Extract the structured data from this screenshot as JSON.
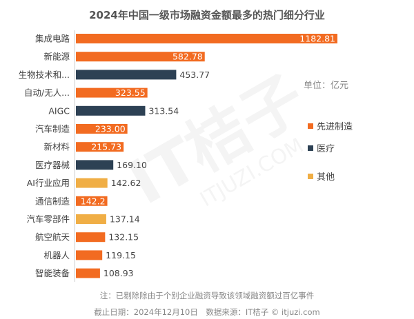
{
  "chart_data": {
    "type": "bar",
    "orientation": "horizontal",
    "title": "2024年中国一级市场融资金额最多的热门细分行业",
    "unit_label": "单位：亿元",
    "categories": [
      "集成电路",
      "新能源",
      "生物技术和...",
      "自动/无人...",
      "AIGC",
      "汽车制造",
      "新材料",
      "医疗器械",
      "AI行业应用",
      "通信制造",
      "汽车零部件",
      "航空航天",
      "机器人",
      "智能装备"
    ],
    "values": [
      1182.81,
      582.78,
      453.77,
      323.55,
      313.54,
      233.0,
      215.73,
      169.1,
      142.62,
      142.2,
      137.14,
      132.15,
      119.15,
      108.93
    ],
    "value_labels": [
      "1182.81",
      "582.78",
      "453.77",
      "323.55",
      "313.54",
      "233.00",
      "215.73",
      "169.10",
      "142.62",
      "142.2",
      "137.14",
      "132.15",
      "119.15",
      "108.93"
    ],
    "groups": [
      "先进制造",
      "先进制造",
      "医疗",
      "先进制造",
      "医疗",
      "先进制造",
      "先进制造",
      "医疗",
      "其他",
      "先进制造",
      "其他",
      "先进制造",
      "先进制造",
      "先进制造"
    ],
    "label_inside": [
      true,
      true,
      false,
      true,
      false,
      true,
      true,
      false,
      false,
      true,
      false,
      false,
      false,
      false
    ],
    "legend": [
      {
        "name": "先进制造",
        "color": "#f26b21"
      },
      {
        "name": "医疗",
        "color": "#2d4154"
      },
      {
        "name": "其他",
        "color": "#f0ae45"
      }
    ],
    "legend_position": "right",
    "grid": false,
    "xlim": [
      0,
      1182.81
    ]
  },
  "footer": {
    "note": "注：已剔除除由于个别企业融资导致该领域融资额过百亿事件",
    "source": "截止日期：2024年12月10日　数据来源：IT桔子 © itjuzi.com"
  },
  "watermark": {
    "logo": "IT桔子",
    "url": "ITJUZI.COM"
  }
}
